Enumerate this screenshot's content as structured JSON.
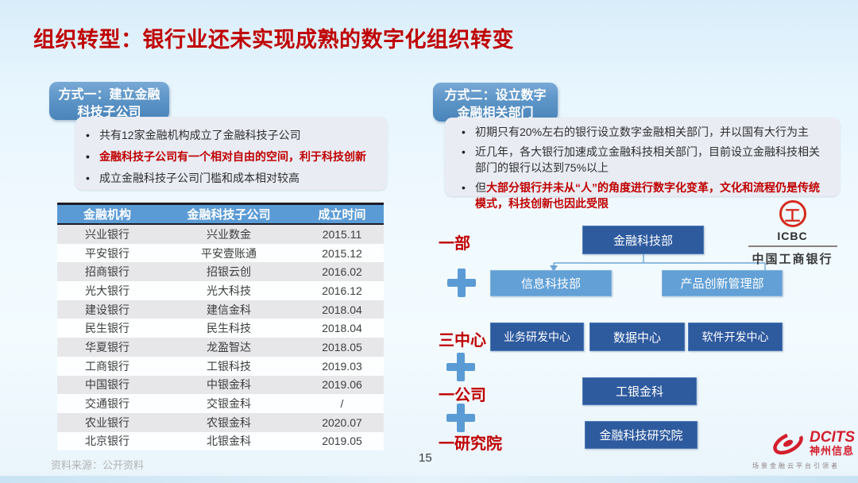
{
  "slide": {
    "title": "组织转型：银行业还未实现成熟的数字化组织转变",
    "page_number": "15",
    "source": "资料来源：公开资料"
  },
  "left_panel": {
    "badge_lines": [
      "方式一：建立金融",
      "科技子公司"
    ],
    "bullets": [
      {
        "text": "共有12家金融机构成立了金融科技子公司",
        "emphasis": false
      },
      {
        "text": "金融科技子公司有一个相对自由的空间，利于科技创新",
        "emphasis": true
      },
      {
        "text": "成立金融科技子公司门槛和成本相对较高",
        "emphasis": false
      }
    ],
    "table": {
      "headers": [
        "金融机构",
        "金融科技子公司",
        "成立时间"
      ],
      "rows": [
        [
          "兴业银行",
          "兴业数金",
          "2015.11"
        ],
        [
          "平安银行",
          "平安壹账通",
          "2015.12"
        ],
        [
          "招商银行",
          "招银云创",
          "2016.02"
        ],
        [
          "光大银行",
          "光大科技",
          "2016.12"
        ],
        [
          "建设银行",
          "建信金科",
          "2018.04"
        ],
        [
          "民生银行",
          "民生科技",
          "2018.04"
        ],
        [
          "华夏银行",
          "龙盈智达",
          "2018.05"
        ],
        [
          "工商银行",
          "工银科技",
          "2019.03"
        ],
        [
          "中国银行",
          "中银金科",
          "2019.06"
        ],
        [
          "交通银行",
          "交银金科",
          "/"
        ],
        [
          "农业银行",
          "农银金科",
          "2020.07"
        ],
        [
          "北京银行",
          "北银金科",
          "2019.05"
        ]
      ]
    }
  },
  "right_panel": {
    "badge_lines": [
      "方式二：设立数字",
      "金融相关部门"
    ],
    "bullets": [
      {
        "text": "初期只有20%左右的银行设立数字金融相关部门，并以国有大行为主",
        "emphasis": false
      },
      {
        "text": "近几年，各大银行加速成立金融科技相关部门，目前设立金融科技相关部门的银行以达到75%以上",
        "emphasis": false
      },
      {
        "prefix": "但",
        "text": "大部分银行并未从“人”的角度进行数字化变革，文化和流程仍是传统模式，科技创新也因此受限",
        "emphasis": true
      }
    ],
    "org_chart": {
      "label_one_dept": "一部",
      "label_three_centers": "三中心",
      "label_one_company": "一公司",
      "label_one_institute": "一研究院",
      "top_box": "金融科技部",
      "child_boxes": [
        "信息科技部",
        "产品创新管理部"
      ],
      "center_boxes": [
        "业务研发中心",
        "数据中心",
        "软件开发中心"
      ],
      "company_box": "工银金科",
      "institute_box": "金融科技研究院"
    },
    "icbc_logo": {
      "emblem_glyph": "工",
      "abbr": "ICBC",
      "name": "中国工商银行"
    }
  },
  "footer_logo": {
    "brand": "DCITS",
    "company": "神州信息",
    "tagline": "场景金融云平台引领者"
  },
  "colors": {
    "title_red": "#C00000",
    "badge_blue": "#5B92C6",
    "table_header_blue": "#5B9BD5",
    "dark_box_blue": "#2E5A9E",
    "light_box_blue": "#62A0D6",
    "plus_blue": "#5B9BD5",
    "icbc_red": "#D52B1E",
    "dcits_red": "#D41E2C"
  }
}
